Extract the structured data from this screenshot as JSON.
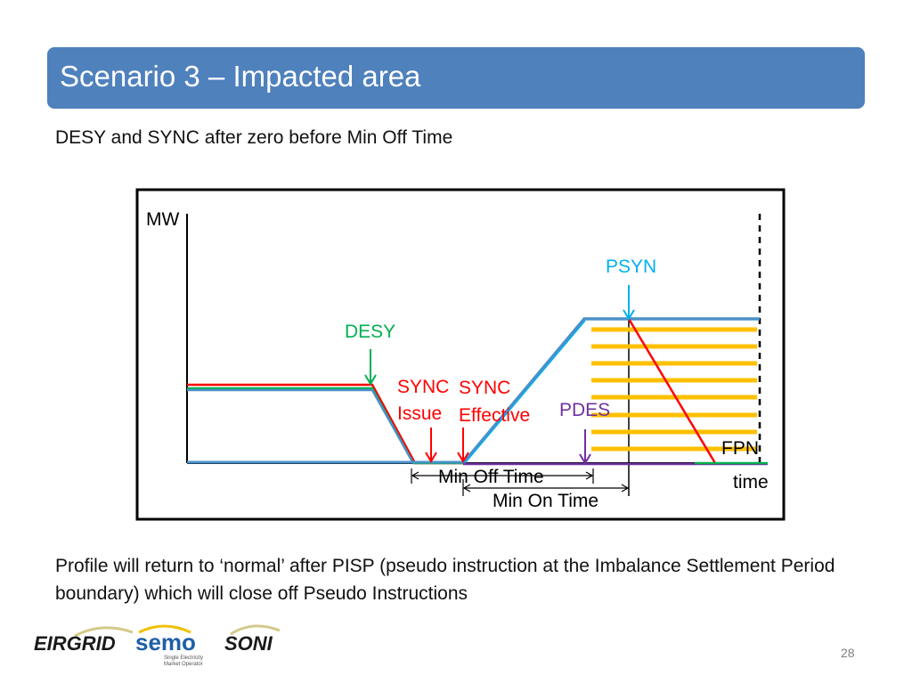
{
  "title": "Scenario 3 – Impacted area",
  "subtitle": "DESY and SYNC after zero before Min Off Time",
  "diagram": {
    "mw_label": "MW",
    "time_label": "time",
    "psyn_label": "PSYN",
    "desy_label": "DESY",
    "sync_issue_line1": "SYNC",
    "sync_issue_line2": "Issue",
    "sync_effective_line1": "SYNC",
    "sync_effective_line2": "Effective",
    "pdes_label": "PDES",
    "fpn_label": "FPN",
    "min_off_time_label": "Min Off Time",
    "min_on_time_label": "Min On Time",
    "colors": {
      "desy": "#00b050",
      "sync": "#ff0000",
      "psyn": "#00b0f0",
      "pdes": "#7030a0",
      "profile_blue": "#4a90c8",
      "hatch": "#ffc000"
    }
  },
  "footer_text": "Profile will return to ‘normal’ after PISP (pseudo instruction at the Imbalance Settlement Period boundary) which will close off Pseudo Instructions",
  "page_number": "28",
  "logos": {
    "eirgrid": "EIRGRID",
    "semo": "semo",
    "semo_tag1": "Single Electricity",
    "semo_tag2": "Market Operator",
    "soni": "SONI"
  }
}
